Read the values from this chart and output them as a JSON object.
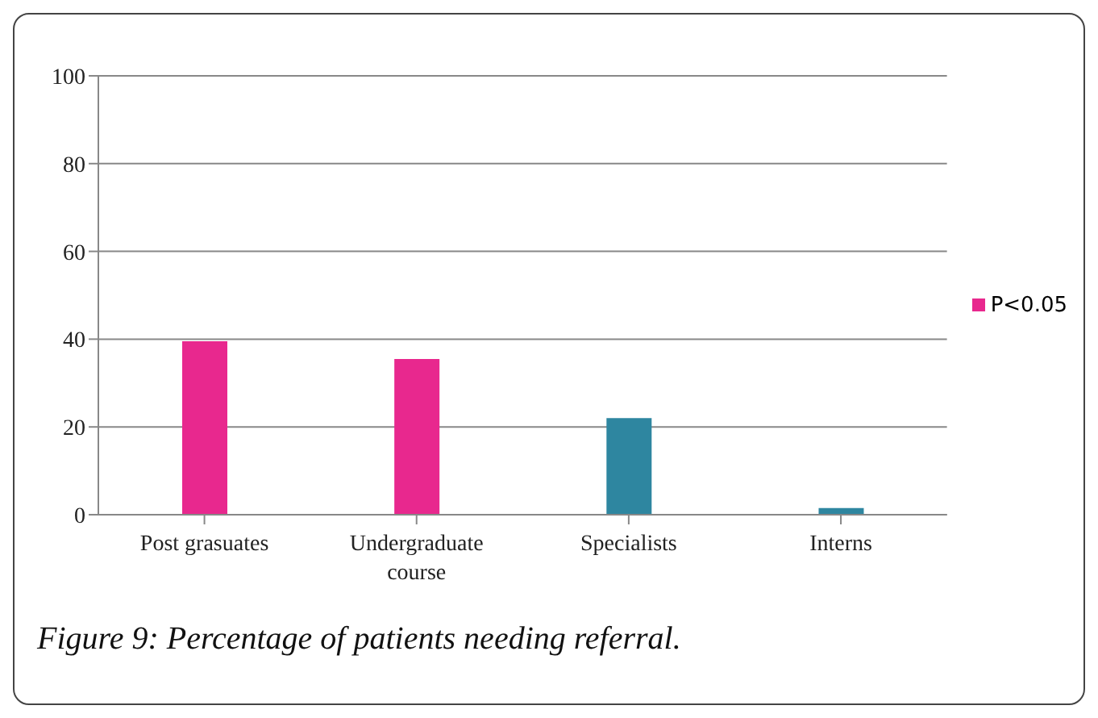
{
  "chart_data": {
    "type": "bar",
    "categories": [
      "Post grasuates",
      "Undergraduate course",
      "Specialists",
      "Interns"
    ],
    "series": [
      {
        "name": "P<0.05",
        "color": "#e8288e",
        "colors": [
          "#e8288e",
          "#e8288e",
          "#2e86a0",
          "#2e86a0"
        ],
        "values": [
          39.5,
          35.5,
          22,
          1.5
        ]
      }
    ],
    "ylim": [
      0,
      100
    ],
    "yticks": [
      0,
      20,
      40,
      60,
      80,
      100
    ],
    "grid": "y",
    "legend": "right",
    "annotations": [
      "Figure 9: Percentage of patients needing referral."
    ]
  }
}
